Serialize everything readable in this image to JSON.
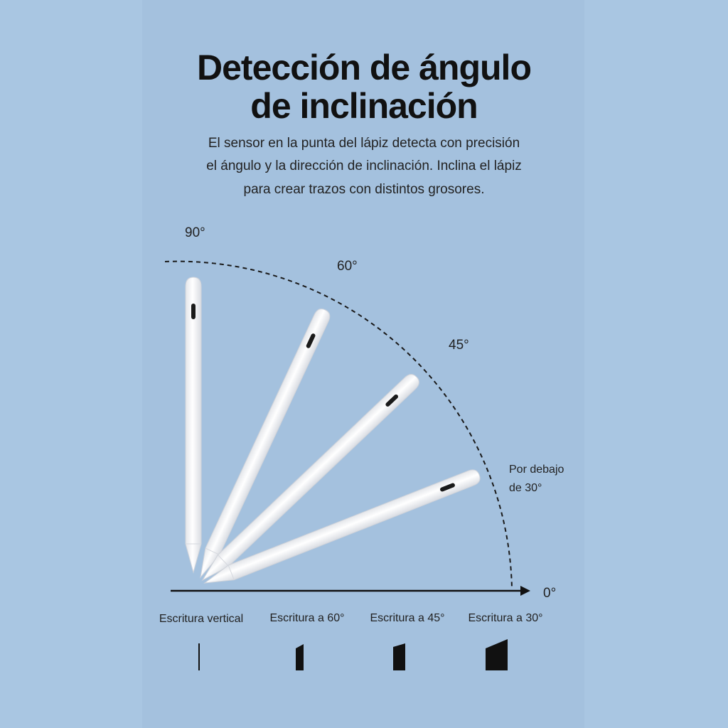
{
  "title": [
    "Detección de ángulo",
    "de inclinación"
  ],
  "description": [
    "El sensor en la punta del lápiz detecta con precisión",
    "el ángulo y la dirección de inclinación. Inclina el lápiz",
    "para crear trazos con distintos grosores."
  ],
  "angles": {
    "deg90": "90°",
    "deg60": "60°",
    "deg45": "45°",
    "below30": [
      "Por debajo",
      "de 30°"
    ],
    "deg0": "0°"
  },
  "captions": [
    "Escritura vertical",
    "Escritura a 60°",
    "Escritura a 45°",
    "Escritura a 30°"
  ]
}
